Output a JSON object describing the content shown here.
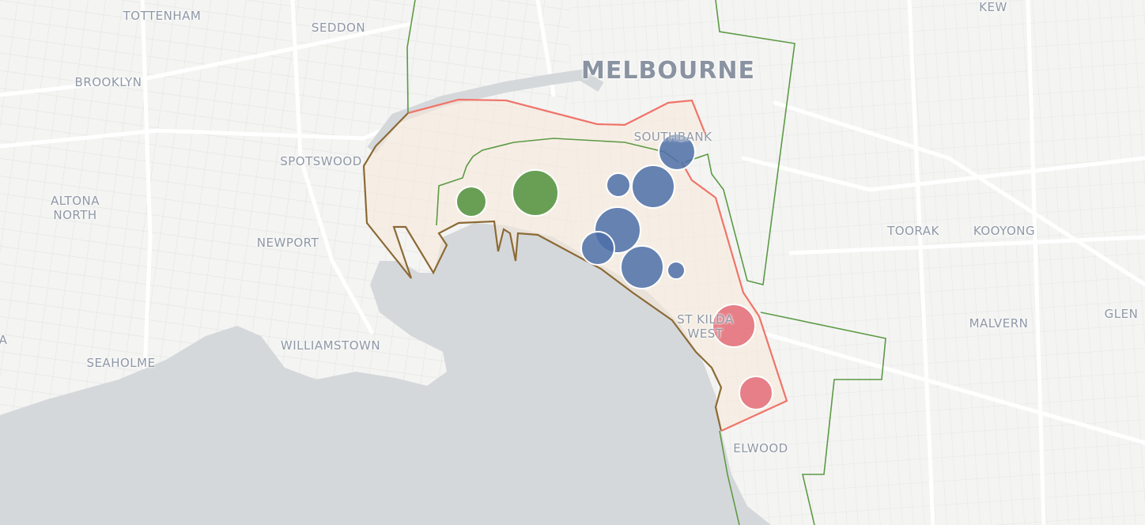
{
  "map": {
    "colors": {
      "land": "#f4f4f3",
      "water": "#d5d8db",
      "road": "#ffffff",
      "region_fill": "#f7eadb",
      "red_boundary": "#f0746a",
      "green_boundary": "#5c9a45",
      "coast_boundary": "#8b6a35",
      "green_marker": "#4f913c",
      "blue_marker": "#4c6ea8",
      "red_marker": "#e36b77"
    },
    "labels": {
      "tottenham": "TOTTENHAM",
      "seddon": "SEDDON",
      "brooklyn": "BROOKLYN",
      "melbourne": "MELBOURNE",
      "kew": "KEW",
      "spotswood": "SPOTSWOOD",
      "southbank": "SOUTHBANK",
      "altona_north": "ALTONA NORTH",
      "newport": "NEWPORT",
      "toorak": "TOORAK",
      "kooyong": "KOOYONG",
      "st_kilda_west": "ST KILDA WEST",
      "malvern": "MALVERN",
      "glen": "GLEN",
      "williamstown": "WILLIAMSTOWN",
      "seaholme": "SEAHOLME",
      "elwood": "ELWOOD",
      "edge_a": "A"
    },
    "markers": [
      {
        "group": "green"
      },
      {
        "group": "green"
      },
      {
        "group": "blue"
      },
      {
        "group": "blue"
      },
      {
        "group": "blue"
      },
      {
        "group": "blue"
      },
      {
        "group": "blue"
      },
      {
        "group": "blue"
      },
      {
        "group": "blue"
      },
      {
        "group": "red"
      },
      {
        "group": "red"
      }
    ]
  }
}
